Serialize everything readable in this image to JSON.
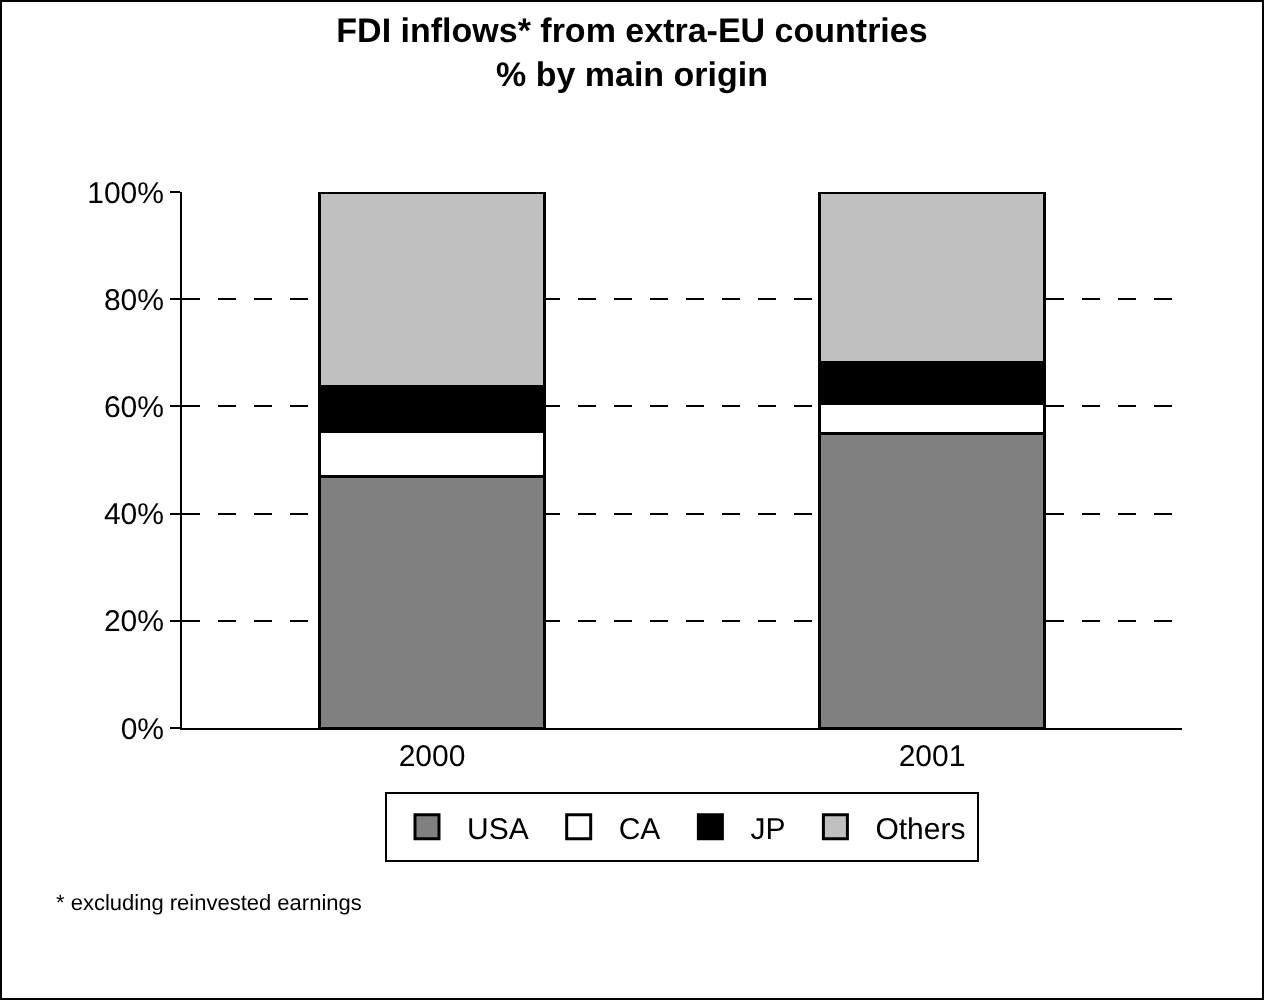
{
  "chart_data": {
    "type": "bar",
    "title": "FDI inflows* from extra-EU countries\n% by main origin",
    "categories": [
      "2000",
      "2001"
    ],
    "stacked": true,
    "series": [
      {
        "name": "USA",
        "color": "#808080",
        "values": [
          47,
          55
        ]
      },
      {
        "name": "CA",
        "color": "#ffffff",
        "values": [
          8.3,
          5.5
        ]
      },
      {
        "name": "JP",
        "color": "#000000",
        "values": [
          8.5,
          7.7
        ]
      },
      {
        "name": "Others",
        "color": "#c0c0c0",
        "values": [
          36.2,
          31.8
        ]
      }
    ],
    "ylim": [
      0,
      100
    ],
    "yticks": [
      {
        "value": 0,
        "label": "0%"
      },
      {
        "value": 20,
        "label": "20%"
      },
      {
        "value": 40,
        "label": "40%"
      },
      {
        "value": 60,
        "label": "60%"
      },
      {
        "value": 80,
        "label": "80%"
      },
      {
        "value": 100,
        "label": "100%"
      }
    ],
    "grid": "y",
    "legend": "bottom",
    "annotations": [
      "* excluding reinvested earnings"
    ]
  }
}
